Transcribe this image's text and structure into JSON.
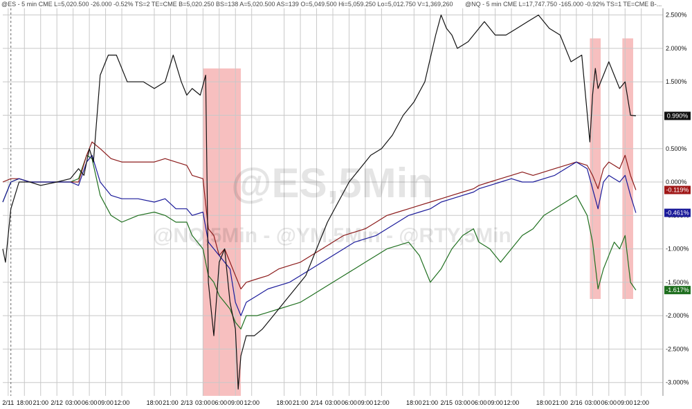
{
  "header": {
    "es_quote": "@ES - 5 min  CME  L=5,020.500  -26.000  -0.52%  TS=2  TE=CME  B=5,020.250  BS=138  A=5,020.500  AS=139  O=5,049.500  Hi=5,059.250  Lo=5,012.750  V=1,369,260",
    "nq_quote": "@NQ - 5 min  CME  L=17,747.750  -165.000  -0.92%  TS=1  TE=CME  B-..."
  },
  "watermark": {
    "main": "@ES,5Min",
    "sub": "@NQ,5Min - @YM,5Min - @RTY,5Min"
  },
  "colors": {
    "es": "#111111",
    "nq": "#1a1a9a",
    "ym": "#8b1a1a",
    "rty": "#1f6f1f",
    "highlight": "#f08a8a",
    "grid": "#c8c8c8"
  },
  "chart_data": {
    "type": "line",
    "y_unit": "%",
    "ylim": [
      -3.2,
      2.6
    ],
    "y_ticks": [
      "2.500%",
      "2.000%",
      "1.500%",
      "1.000%",
      "0.500%",
      "0.000%",
      "-0.500%",
      "-1.000%",
      "-1.500%",
      "-2.000%",
      "-2.500%",
      "-3.000%"
    ],
    "y_tick_values": [
      2.5,
      2.0,
      1.5,
      1.0,
      0.5,
      0.0,
      -0.5,
      -1.0,
      -1.5,
      -2.0,
      -2.5,
      -3.0
    ],
    "x_tick_labels": [
      "2/11",
      "18:00",
      "21:00",
      "2/12",
      "03:00",
      "06:00",
      "09:00",
      "12:00",
      "18:00",
      "21:00",
      "2/13",
      "03:00",
      "06:00",
      "09:00",
      "12:00",
      "18:00",
      "21:00",
      "2/14",
      "03:00",
      "06:00",
      "09:00",
      "12:00",
      "18:00",
      "21:00",
      "2/15",
      "03:00",
      "06:00",
      "09:00",
      "12:00",
      "18:00",
      "21:00",
      "2/16",
      "03:00",
      "06:00",
      "09:00",
      "12:00"
    ],
    "x_tick_pos": [
      0.2,
      0.8,
      1.4,
      2.0,
      2.6,
      3.2,
      3.8,
      4.4,
      5.6,
      6.2,
      6.8,
      7.4,
      8.0,
      8.6,
      9.2,
      10.4,
      11.0,
      11.6,
      12.2,
      12.8,
      13.4,
      14.0,
      15.2,
      15.8,
      16.4,
      17.0,
      17.6,
      18.2,
      18.8,
      20.0,
      20.6,
      21.2,
      21.8,
      22.4,
      23.0,
      23.6
    ],
    "xlim": [
      0,
      24.4
    ],
    "vertical_dashed_at": 0.3,
    "highlight_regions": [
      [
        7.4,
        8.8
      ],
      [
        21.7,
        22.1
      ],
      [
        22.9,
        23.3
      ]
    ],
    "series": [
      {
        "key": "es",
        "last_label": "0.990%",
        "x": [
          0.0,
          0.1,
          0.3,
          0.6,
          1.0,
          1.4,
          2.0,
          2.5,
          2.8,
          3.0,
          3.2,
          3.35,
          3.6,
          3.9,
          4.2,
          4.6,
          5.2,
          5.6,
          6.0,
          6.3,
          6.6,
          6.8,
          7.0,
          7.3,
          7.5,
          7.6,
          7.8,
          8.0,
          8.2,
          8.4,
          8.6,
          8.7,
          8.8,
          9.0,
          9.3,
          9.6,
          10.0,
          10.4,
          10.8,
          11.2,
          11.6,
          12.0,
          12.4,
          12.8,
          13.2,
          13.6,
          14.0,
          14.4,
          14.8,
          15.2,
          15.6,
          16.0,
          16.2,
          16.4,
          16.6,
          16.8,
          17.0,
          17.2,
          17.4,
          17.6,
          17.8,
          18.2,
          18.6,
          19.0,
          19.4,
          19.8,
          20.2,
          20.6,
          21.0,
          21.4,
          21.7,
          21.8,
          21.9,
          22.0,
          22.2,
          22.4,
          22.6,
          22.8,
          23.0,
          23.2,
          23.4
        ],
        "y": [
          -1.0,
          -1.2,
          -0.4,
          0.0,
          0.0,
          -0.05,
          0.0,
          0.05,
          0.2,
          0.1,
          0.5,
          0.3,
          1.6,
          1.9,
          1.9,
          1.5,
          1.5,
          1.4,
          1.5,
          1.9,
          1.5,
          1.3,
          1.4,
          1.3,
          1.6,
          -1.5,
          -2.3,
          -1.2,
          -1.0,
          -1.8,
          -2.2,
          -3.1,
          -2.6,
          -2.3,
          -2.3,
          -2.2,
          -2.0,
          -1.8,
          -1.6,
          -1.4,
          -1.0,
          -0.6,
          -0.3,
          0.0,
          0.2,
          0.4,
          0.5,
          0.7,
          1.0,
          1.2,
          1.5,
          2.2,
          2.5,
          2.3,
          2.2,
          2.0,
          2.05,
          2.1,
          2.2,
          2.3,
          2.4,
          2.2,
          2.2,
          2.3,
          2.4,
          2.5,
          2.3,
          2.2,
          1.8,
          1.9,
          0.6,
          1.3,
          1.7,
          1.4,
          1.6,
          1.8,
          1.6,
          1.4,
          1.5,
          1.0,
          0.99
        ]
      },
      {
        "key": "nq",
        "last_label": "-0.461%",
        "x": [
          0.0,
          0.3,
          0.6,
          1.0,
          1.4,
          2.0,
          2.5,
          2.8,
          3.1,
          3.3,
          3.6,
          4.0,
          4.4,
          5.0,
          5.6,
          6.0,
          6.4,
          6.8,
          7.0,
          7.4,
          7.6,
          7.8,
          8.0,
          8.2,
          8.4,
          8.6,
          8.8,
          9.0,
          9.4,
          9.8,
          10.2,
          10.6,
          11.0,
          11.4,
          11.8,
          12.2,
          12.6,
          13.0,
          13.4,
          13.8,
          14.2,
          14.6,
          15.0,
          15.4,
          15.8,
          16.2,
          16.6,
          17.0,
          17.4,
          17.6,
          18.0,
          18.4,
          18.8,
          19.2,
          19.6,
          20.0,
          20.4,
          20.8,
          21.2,
          21.6,
          21.8,
          22.0,
          22.2,
          22.4,
          22.6,
          22.8,
          23.0,
          23.2,
          23.4
        ],
        "y": [
          -0.3,
          0.0,
          0.05,
          0.0,
          0.0,
          0.0,
          0.0,
          -0.05,
          0.3,
          0.4,
          0.0,
          -0.2,
          -0.25,
          -0.25,
          -0.3,
          -0.25,
          -0.4,
          -0.4,
          -0.5,
          -0.45,
          -0.9,
          -1.0,
          -1.1,
          -1.2,
          -1.3,
          -1.8,
          -2.0,
          -1.8,
          -1.7,
          -1.6,
          -1.55,
          -1.5,
          -1.4,
          -1.3,
          -1.2,
          -1.1,
          -1.0,
          -0.9,
          -0.85,
          -0.8,
          -0.7,
          -0.6,
          -0.5,
          -0.45,
          -0.4,
          -0.3,
          -0.25,
          -0.2,
          -0.15,
          -0.1,
          -0.05,
          0.0,
          0.05,
          0.0,
          0.0,
          0.05,
          0.1,
          0.2,
          0.3,
          0.2,
          -0.1,
          -0.4,
          0.0,
          0.1,
          0.05,
          0.0,
          0.1,
          -0.2,
          -0.461
        ]
      },
      {
        "key": "ym",
        "last_label": "-0.119%",
        "x": [
          0.0,
          0.3,
          0.6,
          1.0,
          1.4,
          2.0,
          2.5,
          2.8,
          3.1,
          3.3,
          3.6,
          4.0,
          4.4,
          5.0,
          5.6,
          6.0,
          6.4,
          6.8,
          7.0,
          7.4,
          7.6,
          7.8,
          8.0,
          8.2,
          8.4,
          8.6,
          8.8,
          9.0,
          9.4,
          9.8,
          10.2,
          10.6,
          11.0,
          11.4,
          11.8,
          12.2,
          12.6,
          13.0,
          13.4,
          13.8,
          14.2,
          14.6,
          15.0,
          15.4,
          15.8,
          16.2,
          16.6,
          17.0,
          17.4,
          17.6,
          18.0,
          18.4,
          18.8,
          19.2,
          19.6,
          20.0,
          20.4,
          20.8,
          21.2,
          21.6,
          21.8,
          22.0,
          22.2,
          22.4,
          22.6,
          22.8,
          23.0,
          23.2,
          23.4
        ],
        "y": [
          0.0,
          0.05,
          0.05,
          0.0,
          0.0,
          0.0,
          0.0,
          0.0,
          0.4,
          0.6,
          0.5,
          0.35,
          0.3,
          0.3,
          0.3,
          0.35,
          0.3,
          0.25,
          0.1,
          0.05,
          -0.7,
          -0.8,
          -1.1,
          -1.0,
          -1.2,
          -1.4,
          -1.6,
          -1.5,
          -1.45,
          -1.4,
          -1.3,
          -1.25,
          -1.2,
          -1.1,
          -1.0,
          -0.9,
          -0.8,
          -0.75,
          -0.7,
          -0.6,
          -0.5,
          -0.45,
          -0.4,
          -0.35,
          -0.3,
          -0.25,
          -0.2,
          -0.15,
          -0.1,
          -0.05,
          0.0,
          0.05,
          0.1,
          0.15,
          0.1,
          0.15,
          0.2,
          0.25,
          0.3,
          0.25,
          0.1,
          -0.1,
          0.2,
          0.3,
          0.25,
          0.2,
          0.4,
          0.1,
          -0.119
        ]
      },
      {
        "key": "rty",
        "last_label": "-1.617%",
        "x": [
          0.0,
          0.3,
          0.6,
          1.0,
          1.4,
          2.0,
          2.5,
          2.8,
          3.1,
          3.3,
          3.6,
          4.0,
          4.4,
          5.0,
          5.6,
          6.0,
          6.4,
          6.8,
          7.0,
          7.4,
          7.6,
          7.8,
          8.0,
          8.2,
          8.4,
          8.6,
          8.8,
          9.0,
          9.4,
          9.8,
          10.2,
          10.6,
          11.0,
          11.4,
          11.8,
          12.2,
          12.6,
          13.0,
          13.4,
          13.8,
          14.2,
          14.6,
          15.0,
          15.4,
          15.8,
          16.2,
          16.6,
          17.0,
          17.4,
          17.6,
          18.0,
          18.4,
          18.8,
          19.2,
          19.6,
          20.0,
          20.4,
          20.8,
          21.2,
          21.6,
          21.8,
          22.0,
          22.2,
          22.4,
          22.6,
          22.8,
          23.0,
          23.2,
          23.4
        ],
        "y": [
          -0.3,
          0.0,
          0.05,
          0.0,
          0.0,
          0.0,
          0.0,
          0.05,
          0.4,
          0.35,
          -0.2,
          -0.5,
          -0.6,
          -0.5,
          -0.45,
          -0.5,
          -0.6,
          -0.6,
          -0.8,
          -1.0,
          -1.4,
          -1.5,
          -1.7,
          -1.8,
          -1.9,
          -2.1,
          -2.2,
          -2.0,
          -2.0,
          -1.95,
          -1.9,
          -1.85,
          -1.8,
          -1.7,
          -1.6,
          -1.5,
          -1.4,
          -1.3,
          -1.2,
          -1.1,
          -1.0,
          -0.95,
          -0.9,
          -1.1,
          -1.5,
          -1.3,
          -1.0,
          -0.8,
          -0.7,
          -0.9,
          -1.0,
          -1.2,
          -1.0,
          -0.8,
          -0.7,
          -0.5,
          -0.4,
          -0.3,
          -0.2,
          -0.5,
          -0.9,
          -1.6,
          -1.3,
          -1.1,
          -0.9,
          -1.0,
          -0.8,
          -1.5,
          -1.617
        ]
      }
    ]
  }
}
